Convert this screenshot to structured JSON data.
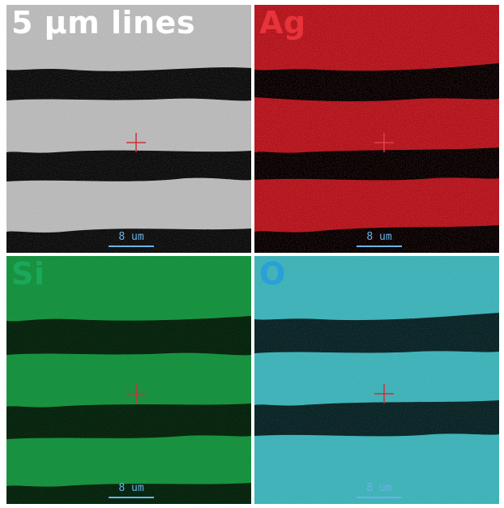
{
  "figure": {
    "panels": [
      {
        "id": "sem",
        "label": "5 µm lines",
        "label_color": "#ffffff",
        "band_color": "#b8b8b8",
        "gap_color": "#0c0c0c",
        "scale_text": "8 um"
      },
      {
        "id": "ag",
        "label": "Ag",
        "label_color": "#e8333a",
        "band_color": "#b3151d",
        "gap_color": "#060101",
        "scale_text": "8 um"
      },
      {
        "id": "si",
        "label": "Si",
        "label_color": "#1aa85a",
        "band_color": "#17913f",
        "gap_color": "#08240f",
        "scale_text": "8 um"
      },
      {
        "id": "o",
        "label": "O",
        "label_color": "#2a9fd8",
        "band_color": "#3fb1b7",
        "gap_color": "#0b2325",
        "scale_text": "8 um"
      }
    ]
  }
}
